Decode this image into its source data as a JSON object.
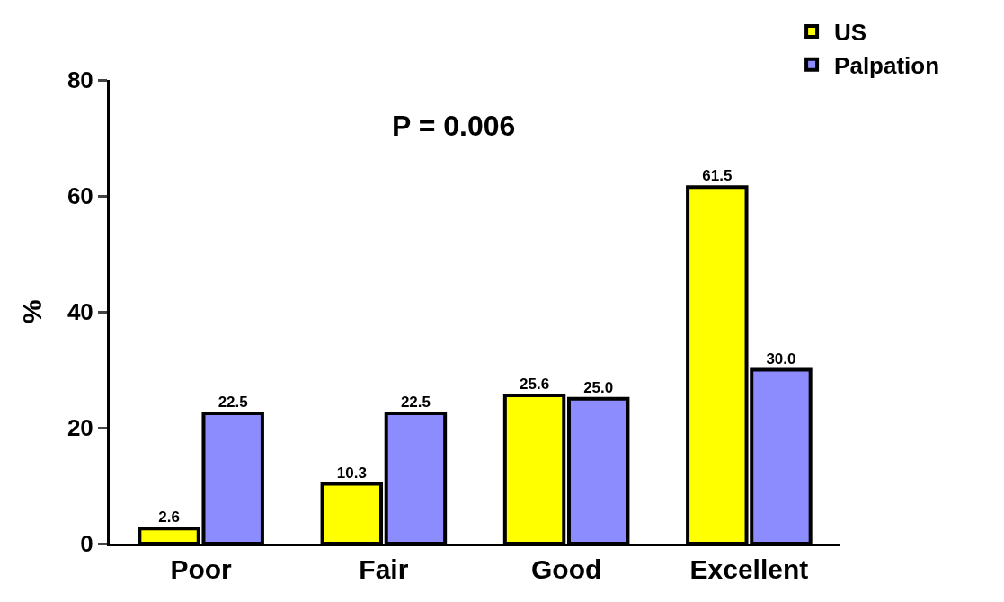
{
  "chart_data": {
    "type": "bar",
    "ylabel": "%",
    "annotations": [
      "P = 0.006"
    ],
    "categories": [
      "Poor",
      "Fair",
      "Good",
      "Excellent"
    ],
    "series": [
      {
        "name": "US",
        "color": "#ffff00",
        "values": [
          2.6,
          10.3,
          25.6,
          61.5
        ],
        "value_labels": [
          "2.6",
          "10.3",
          "25.6",
          "61.5"
        ]
      },
      {
        "name": "Palpation",
        "color": "#8c8cff",
        "values": [
          22.5,
          22.5,
          25.0,
          30.0
        ],
        "value_labels": [
          "22.5",
          "22.5",
          "25.0",
          "30.0"
        ]
      }
    ],
    "ylim": [
      0,
      80
    ],
    "yticks": [
      0,
      20,
      40,
      60,
      80
    ],
    "grid": false,
    "legend": "top right"
  }
}
